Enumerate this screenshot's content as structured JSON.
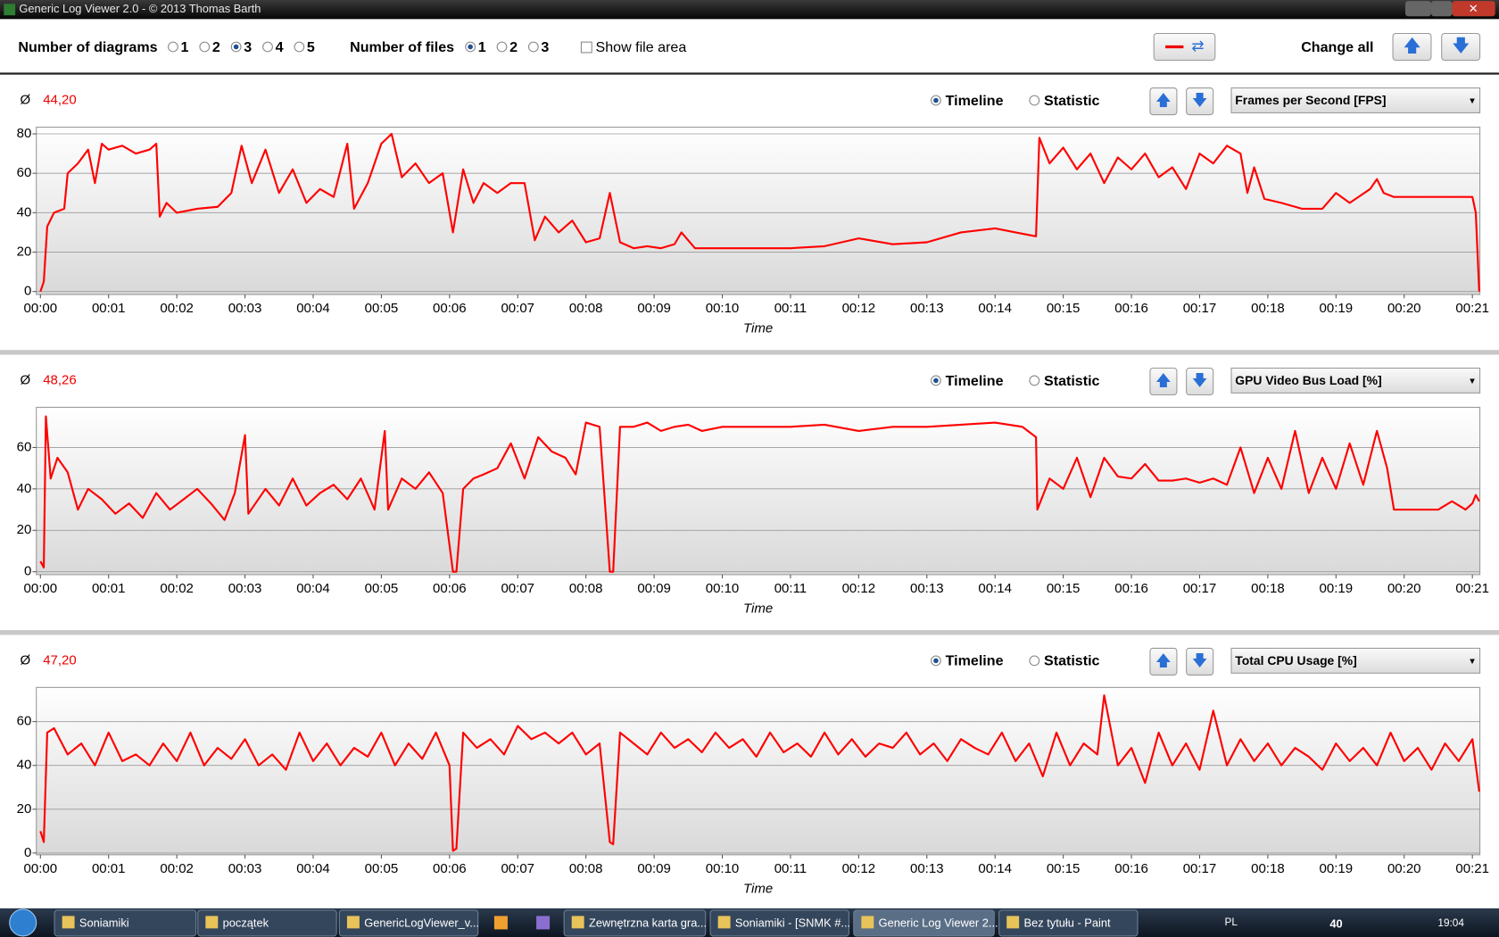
{
  "window": {
    "title": "Generic Log Viewer 2.0 - © 2013 Thomas Barth"
  },
  "toolbar": {
    "diagrams_label": "Number of diagrams",
    "diagram_options": [
      "1",
      "2",
      "3",
      "4",
      "5"
    ],
    "files_label": "Number of files",
    "file_options": [
      "1",
      "2",
      "3"
    ],
    "show_file_area": "Show file area",
    "change_all": "Change all"
  },
  "panels": [
    {
      "avg_symbol": "Ø",
      "average": "44,20",
      "views": [
        "Timeline",
        "Statistic"
      ],
      "metric": "Frames per Second [FPS]"
    },
    {
      "avg_symbol": "Ø",
      "average": "48,26",
      "views": [
        "Timeline",
        "Statistic"
      ],
      "metric": "GPU Video Bus Load [%]"
    },
    {
      "avg_symbol": "Ø",
      "average": "47,20",
      "views": [
        "Timeline",
        "Statistic"
      ],
      "metric": "Total CPU Usage [%]"
    }
  ],
  "chart_data": [
    {
      "type": "line",
      "x_label": "Time",
      "xlim": [
        -0.06,
        21.11
      ],
      "ylim": [
        -1.5,
        83.4
      ],
      "yticks": [
        0,
        20,
        40,
        60,
        80
      ],
      "grid": true,
      "xticks": [
        {
          "value": 0,
          "label": "00:00"
        },
        {
          "value": 1,
          "label": "00:01"
        },
        {
          "value": 2,
          "label": "00:02"
        },
        {
          "value": 3,
          "label": "00:03"
        },
        {
          "value": 4,
          "label": "00:04"
        },
        {
          "value": 5,
          "label": "00:05"
        },
        {
          "value": 6,
          "label": "00:06"
        },
        {
          "value": 7,
          "label": "00:07"
        },
        {
          "value": 8,
          "label": "00:08"
        },
        {
          "value": 9,
          "label": "00:09"
        },
        {
          "value": 10,
          "label": "00:10"
        },
        {
          "value": 11,
          "label": "00:11"
        },
        {
          "value": 12,
          "label": "00:12"
        },
        {
          "value": 13,
          "label": "00:13"
        },
        {
          "value": 14,
          "label": "00:14"
        },
        {
          "value": 15,
          "label": "00:15"
        },
        {
          "value": 16,
          "label": "00:16"
        },
        {
          "value": 17,
          "label": "00:17"
        },
        {
          "value": 18,
          "label": "00:18"
        },
        {
          "value": 19,
          "label": "00:19"
        },
        {
          "value": 20,
          "label": "00:20"
        },
        {
          "value": 21,
          "label": "00:21"
        }
      ],
      "x": [
        0,
        0.05,
        0.1,
        0.2,
        0.35,
        0.4,
        0.55,
        0.7,
        0.8,
        0.9,
        1.0,
        1.2,
        1.4,
        1.6,
        1.7,
        1.75,
        1.85,
        2.0,
        2.3,
        2.6,
        2.8,
        2.95,
        3.1,
        3.3,
        3.5,
        3.7,
        3.9,
        4.1,
        4.3,
        4.5,
        4.6,
        4.8,
        5.0,
        5.15,
        5.3,
        5.5,
        5.7,
        5.9,
        6.05,
        6.2,
        6.35,
        6.5,
        6.7,
        6.9,
        7.1,
        7.25,
        7.4,
        7.6,
        7.8,
        8.0,
        8.2,
        8.35,
        8.5,
        8.7,
        8.9,
        9.1,
        9.3,
        9.4,
        9.6,
        10,
        10.5,
        11,
        11.5,
        12,
        12.5,
        13,
        13.5,
        14,
        14.3,
        14.6,
        14.65,
        14.8,
        15.0,
        15.2,
        15.4,
        15.6,
        15.8,
        16,
        16.2,
        16.4,
        16.6,
        16.8,
        17,
        17.2,
        17.4,
        17.6,
        17.7,
        17.8,
        17.95,
        18.2,
        18.5,
        18.8,
        19,
        19.2,
        19.5,
        19.6,
        19.7,
        19.85,
        20,
        20.5,
        21.0,
        21.05,
        21.1
      ],
      "series": [
        {
          "color": "#ff0000",
          "values": [
            0,
            5,
            33,
            40,
            42,
            60,
            65,
            72,
            55,
            75,
            72,
            74,
            70,
            72,
            75,
            38,
            45,
            40,
            42,
            43,
            50,
            74,
            55,
            72,
            50,
            62,
            45,
            52,
            48,
            75,
            42,
            55,
            75,
            80,
            58,
            65,
            55,
            60,
            30,
            62,
            45,
            55,
            50,
            55,
            55,
            26,
            38,
            30,
            36,
            25,
            27,
            50,
            25,
            22,
            23,
            22,
            24,
            30,
            22,
            22,
            22,
            22,
            23,
            27,
            24,
            25,
            30,
            32,
            30,
            28,
            78,
            65,
            73,
            62,
            70,
            55,
            68,
            62,
            70,
            58,
            63,
            52,
            70,
            65,
            74,
            70,
            50,
            63,
            47,
            45,
            42,
            42,
            50,
            45,
            52,
            57,
            50,
            48,
            48,
            48,
            48,
            40,
            0
          ]
        }
      ]
    },
    {
      "type": "line",
      "x_label": "Time",
      "xlim": [
        -0.06,
        21.11
      ],
      "ylim": [
        -1.4,
        79.4
      ],
      "yticks": [
        0,
        20,
        40,
        60
      ],
      "grid": true,
      "xticks": [
        {
          "value": 0,
          "label": "00:00"
        },
        {
          "value": 1,
          "label": "00:01"
        },
        {
          "value": 2,
          "label": "00:02"
        },
        {
          "value": 3,
          "label": "00:03"
        },
        {
          "value": 4,
          "label": "00:04"
        },
        {
          "value": 5,
          "label": "00:05"
        },
        {
          "value": 6,
          "label": "00:06"
        },
        {
          "value": 7,
          "label": "00:07"
        },
        {
          "value": 8,
          "label": "00:08"
        },
        {
          "value": 9,
          "label": "00:09"
        },
        {
          "value": 10,
          "label": "00:10"
        },
        {
          "value": 11,
          "label": "00:11"
        },
        {
          "value": 12,
          "label": "00:12"
        },
        {
          "value": 13,
          "label": "00:13"
        },
        {
          "value": 14,
          "label": "00:14"
        },
        {
          "value": 15,
          "label": "00:15"
        },
        {
          "value": 16,
          "label": "00:16"
        },
        {
          "value": 17,
          "label": "00:17"
        },
        {
          "value": 18,
          "label": "00:18"
        },
        {
          "value": 19,
          "label": "00:19"
        },
        {
          "value": 20,
          "label": "00:20"
        },
        {
          "value": 21,
          "label": "00:21"
        }
      ],
      "x": [
        0,
        0.05,
        0.08,
        0.15,
        0.25,
        0.4,
        0.55,
        0.7,
        0.9,
        1.1,
        1.3,
        1.5,
        1.7,
        1.9,
        2.1,
        2.3,
        2.5,
        2.7,
        2.85,
        3.0,
        3.05,
        3.3,
        3.5,
        3.7,
        3.9,
        4.1,
        4.3,
        4.5,
        4.7,
        4.9,
        5.05,
        5.1,
        5.3,
        5.5,
        5.7,
        5.9,
        6.05,
        6.1,
        6.2,
        6.35,
        6.5,
        6.7,
        6.9,
        7.1,
        7.3,
        7.5,
        7.7,
        7.85,
        8.0,
        8.2,
        8.35,
        8.4,
        8.5,
        8.7,
        8.9,
        9.1,
        9.3,
        9.5,
        9.7,
        10,
        10.5,
        11,
        11.5,
        12,
        12.5,
        13,
        13.5,
        14,
        14.4,
        14.6,
        14.62,
        14.8,
        15.0,
        15.2,
        15.4,
        15.6,
        15.8,
        16,
        16.2,
        16.4,
        16.6,
        16.8,
        17.0,
        17.2,
        17.4,
        17.6,
        17.8,
        18.0,
        18.2,
        18.4,
        18.6,
        18.8,
        19.0,
        19.2,
        19.4,
        19.6,
        19.75,
        19.85,
        20,
        20.5,
        20.7,
        20.9,
        21.0,
        21.05,
        21.1
      ],
      "series": [
        {
          "color": "#ff0000",
          "values": [
            5,
            2,
            75,
            45,
            55,
            48,
            30,
            40,
            35,
            28,
            33,
            26,
            38,
            30,
            35,
            40,
            33,
            25,
            38,
            66,
            28,
            40,
            32,
            45,
            32,
            38,
            42,
            35,
            45,
            30,
            68,
            30,
            45,
            40,
            48,
            38,
            0,
            0,
            40,
            45,
            47,
            50,
            62,
            45,
            65,
            58,
            55,
            47,
            72,
            70,
            0,
            0,
            70,
            70,
            72,
            68,
            70,
            71,
            68,
            70,
            70,
            70,
            71,
            68,
            70,
            70,
            71,
            72,
            70,
            65,
            30,
            45,
            40,
            55,
            36,
            55,
            46,
            45,
            52,
            44,
            44,
            45,
            43,
            45,
            42,
            60,
            38,
            55,
            40,
            68,
            38,
            55,
            40,
            62,
            42,
            68,
            50,
            30,
            30,
            30,
            34,
            30,
            33,
            37,
            34
          ]
        }
      ]
    },
    {
      "type": "line",
      "x_label": "Time",
      "xlim": [
        -0.06,
        21.11
      ],
      "ylim": [
        -0.8,
        75.6
      ],
      "yticks": [
        0,
        20,
        40,
        60
      ],
      "grid": true,
      "xticks": [
        {
          "value": 0,
          "label": "00:00"
        },
        {
          "value": 1,
          "label": "00:01"
        },
        {
          "value": 2,
          "label": "00:02"
        },
        {
          "value": 3,
          "label": "00:03"
        },
        {
          "value": 4,
          "label": "00:04"
        },
        {
          "value": 5,
          "label": "00:05"
        },
        {
          "value": 6,
          "label": "00:06"
        },
        {
          "value": 7,
          "label": "00:07"
        },
        {
          "value": 8,
          "label": "00:08"
        },
        {
          "value": 9,
          "label": "00:09"
        },
        {
          "value": 10,
          "label": "00:10"
        },
        {
          "value": 11,
          "label": "00:11"
        },
        {
          "value": 12,
          "label": "00:12"
        },
        {
          "value": 13,
          "label": "00:13"
        },
        {
          "value": 14,
          "label": "00:14"
        },
        {
          "value": 15,
          "label": "00:15"
        },
        {
          "value": 16,
          "label": "00:16"
        },
        {
          "value": 17,
          "label": "00:17"
        },
        {
          "value": 18,
          "label": "00:18"
        },
        {
          "value": 19,
          "label": "00:19"
        },
        {
          "value": 20,
          "label": "00:20"
        },
        {
          "value": 21,
          "label": "00:21"
        }
      ],
      "x": [
        0,
        0.05,
        0.1,
        0.2,
        0.4,
        0.6,
        0.8,
        1.0,
        1.2,
        1.4,
        1.6,
        1.8,
        2.0,
        2.2,
        2.4,
        2.6,
        2.8,
        3.0,
        3.2,
        3.4,
        3.6,
        3.8,
        4.0,
        4.2,
        4.4,
        4.6,
        4.8,
        5.0,
        5.2,
        5.4,
        5.6,
        5.8,
        6.0,
        6.05,
        6.1,
        6.2,
        6.4,
        6.6,
        6.8,
        7.0,
        7.2,
        7.4,
        7.6,
        7.8,
        8.0,
        8.2,
        8.35,
        8.4,
        8.5,
        8.7,
        8.9,
        9.1,
        9.3,
        9.5,
        9.7,
        9.9,
        10.1,
        10.3,
        10.5,
        10.7,
        10.9,
        11.1,
        11.3,
        11.5,
        11.7,
        11.9,
        12.1,
        12.3,
        12.5,
        12.7,
        12.9,
        13.1,
        13.3,
        13.5,
        13.7,
        13.9,
        14.1,
        14.3,
        14.5,
        14.7,
        14.9,
        15.1,
        15.3,
        15.5,
        15.6,
        15.8,
        16.0,
        16.2,
        16.4,
        16.6,
        16.8,
        17.0,
        17.2,
        17.4,
        17.6,
        17.8,
        18.0,
        18.2,
        18.4,
        18.6,
        18.8,
        19.0,
        19.2,
        19.4,
        19.6,
        19.8,
        20.0,
        20.2,
        20.4,
        20.6,
        20.8,
        21.0,
        21.1
      ],
      "series": [
        {
          "color": "#ff0000",
          "values": [
            10,
            5,
            55,
            57,
            45,
            50,
            40,
            55,
            42,
            45,
            40,
            50,
            42,
            55,
            40,
            48,
            43,
            52,
            40,
            45,
            38,
            55,
            42,
            50,
            40,
            48,
            44,
            55,
            40,
            50,
            43,
            55,
            40,
            1,
            2,
            55,
            48,
            52,
            45,
            58,
            52,
            55,
            50,
            55,
            45,
            50,
            5,
            4,
            55,
            50,
            45,
            55,
            48,
            52,
            46,
            55,
            48,
            52,
            44,
            55,
            46,
            50,
            44,
            55,
            45,
            52,
            44,
            50,
            48,
            55,
            45,
            50,
            42,
            52,
            48,
            45,
            55,
            42,
            50,
            35,
            55,
            40,
            50,
            45,
            72,
            40,
            48,
            32,
            55,
            40,
            50,
            38,
            65,
            40,
            52,
            42,
            50,
            40,
            48,
            44,
            38,
            50,
            42,
            48,
            40,
            55,
            42,
            48,
            38,
            50,
            42,
            52,
            28
          ]
        }
      ]
    }
  ],
  "taskbar": {
    "items": [
      "Soniamiki",
      "początek",
      "GenericLogViewer_v...",
      "Zewnętrzna karta gra...",
      "Soniamiki - [SNMK #...",
      "Generic Log Viewer 2...",
      "Bez tytułu - Paint"
    ],
    "language": "PL",
    "tray_value": "40",
    "clock": "19:04"
  }
}
